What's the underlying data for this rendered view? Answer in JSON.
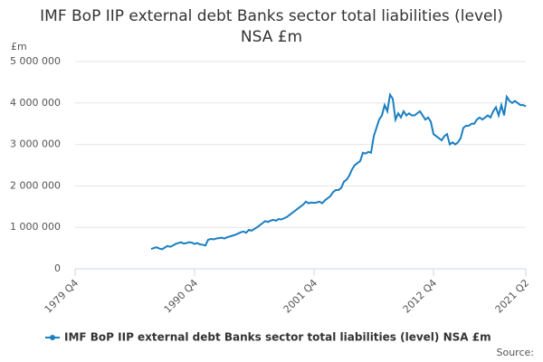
{
  "chart_data": {
    "type": "line",
    "title": "IMF BoP IIP external debt Banks sector total liabilities (level) NSA £m",
    "y_axis_label": "£m",
    "source": "Source:",
    "categories": [
      "1979 Q4",
      null,
      null,
      null,
      null,
      null,
      null,
      null,
      null,
      null,
      null,
      null,
      null,
      null,
      null,
      null,
      null,
      null,
      null,
      null,
      null,
      null,
      null,
      null,
      null,
      null,
      null,
      null,
      null,
      null,
      null,
      null,
      null,
      null,
      null,
      null,
      null,
      null,
      null,
      null,
      null,
      null,
      null,
      null,
      "1990 Q4",
      null,
      null,
      null,
      null,
      null,
      null,
      null,
      null,
      null,
      null,
      null,
      null,
      null,
      null,
      null,
      null,
      null,
      null,
      null,
      null,
      null,
      null,
      null,
      null,
      null,
      null,
      null,
      null,
      null,
      null,
      null,
      null,
      null,
      null,
      null,
      null,
      null,
      null,
      null,
      null,
      null,
      null,
      null,
      "2001 Q4",
      null,
      null,
      null,
      null,
      null,
      null,
      null,
      null,
      null,
      null,
      null,
      null,
      null,
      null,
      null,
      null,
      null,
      null,
      null,
      null,
      null,
      null,
      null,
      null,
      null,
      null,
      null,
      null,
      null,
      null,
      null,
      null,
      null,
      null,
      null,
      null,
      null,
      null,
      null,
      null,
      null,
      null,
      null,
      "2012 Q4",
      null,
      null,
      null,
      null,
      null,
      null,
      null,
      null,
      null,
      null,
      null,
      null,
      null,
      null,
      null,
      null,
      null,
      null,
      null,
      null,
      null,
      null,
      null,
      null,
      null,
      null,
      null,
      null,
      null,
      null,
      null,
      null,
      null,
      "2021 Q2"
    ],
    "series": [
      {
        "name": "IMF BoP IIP external debt Banks sector total liabilities (level) NSA £m",
        "color": "#1a7fc1",
        "values": [
          null,
          null,
          null,
          null,
          null,
          null,
          null,
          null,
          null,
          null,
          null,
          null,
          null,
          null,
          null,
          null,
          null,
          null,
          null,
          null,
          null,
          null,
          null,
          null,
          null,
          null,
          null,
          null,
          480000,
          500000,
          520000,
          490000,
          470000,
          510000,
          550000,
          530000,
          560000,
          600000,
          620000,
          640000,
          610000,
          620000,
          640000,
          630000,
          600000,
          620000,
          590000,
          580000,
          560000,
          700000,
          720000,
          710000,
          730000,
          740000,
          750000,
          730000,
          760000,
          780000,
          800000,
          820000,
          850000,
          880000,
          900000,
          870000,
          940000,
          920000,
          960000,
          1000000,
          1050000,
          1100000,
          1150000,
          1130000,
          1160000,
          1180000,
          1160000,
          1200000,
          1190000,
          1220000,
          1250000,
          1300000,
          1350000,
          1400000,
          1450000,
          1500000,
          1550000,
          1620000,
          1580000,
          1600000,
          1590000,
          1600000,
          1620000,
          1580000,
          1650000,
          1700000,
          1750000,
          1850000,
          1900000,
          1900000,
          1950000,
          2100000,
          2150000,
          2250000,
          2400000,
          2500000,
          2550000,
          2600000,
          2800000,
          2780000,
          2820000,
          2800000,
          3200000,
          3400000,
          3600000,
          3700000,
          3950000,
          3800000,
          4200000,
          4100000,
          3600000,
          3750000,
          3650000,
          3800000,
          3700000,
          3750000,
          3700000,
          3700000,
          3750000,
          3800000,
          3700000,
          3600000,
          3650000,
          3550000,
          3250000,
          3200000,
          3150000,
          3100000,
          3200000,
          3250000,
          3000000,
          3050000,
          3000000,
          3050000,
          3150000,
          3400000,
          3450000,
          3450000,
          3500000,
          3500000,
          3600000,
          3650000,
          3600000,
          3650000,
          3700000,
          3650000,
          3800000,
          3900000,
          3700000,
          3950000,
          3700000,
          4150000,
          4050000,
          4000000,
          4050000,
          4000000,
          3950000,
          3950000,
          3920000
        ]
      }
    ],
    "ylim": [
      0,
      5000000
    ],
    "yticks": [
      0,
      {
        "value": 1000000,
        "label": "1 000 000"
      },
      {
        "value": 2000000,
        "label": "2 000 000"
      },
      {
        "value": 3000000,
        "label": "3 000 000"
      },
      {
        "value": 4000000,
        "label": "4 000 000"
      },
      {
        "value": 5000000,
        "label": "5 000 000"
      }
    ],
    "grid": true
  }
}
